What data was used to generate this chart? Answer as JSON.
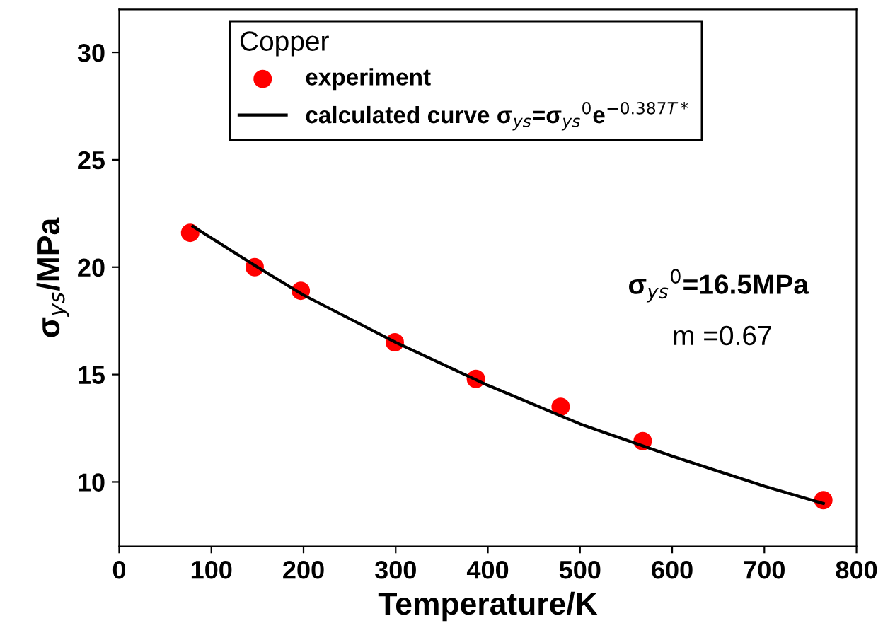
{
  "chart_data": {
    "type": "scatter",
    "xlabel": "Temperature/K",
    "ylabel": "σ$_{ys}$/MPa",
    "legend_title": "Copper",
    "legend": "top",
    "grid": false,
    "xlim": [
      0,
      800
    ],
    "xticks": [
      0,
      100,
      200,
      300,
      400,
      500,
      600,
      700,
      800
    ],
    "ylim": [
      7,
      32
    ],
    "yticks": [
      10,
      15,
      20,
      25,
      30
    ],
    "series": [
      {
        "name": "experiment",
        "marker": "circle",
        "color": "#ff0000",
        "x": [
          77,
          147,
          197,
          299,
          387,
          479,
          568,
          764
        ],
        "values": [
          21.6,
          20.0,
          18.9,
          16.5,
          14.8,
          13.5,
          11.9,
          9.15
        ]
      },
      {
        "name": "calculated curve σ$_{ys}$=σ$_{ys}$$^{0}$e$^{−0.387T*}$",
        "type": "line",
        "marker": "none",
        "line_style": "solid",
        "color": "#000000",
        "x": [
          80,
          150,
          200,
          300,
          400,
          500,
          600,
          700,
          764
        ],
        "values": [
          21.9,
          20.0,
          18.7,
          16.5,
          14.5,
          12.7,
          11.2,
          9.8,
          9.0
        ]
      }
    ],
    "annotations": [
      "σ$_{ys}$$^{0}$=16.5MPa",
      "m =0.67"
    ]
  }
}
